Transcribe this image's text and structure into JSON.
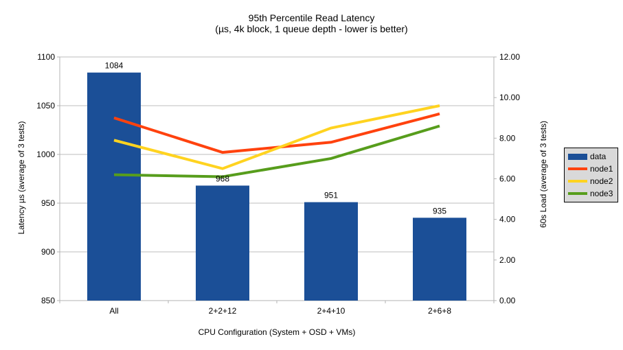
{
  "title": {
    "line1": "95th Percentile Read Latency",
    "line2": "(µs, 4k block, 1 queue depth - lower is better)"
  },
  "chart_data": {
    "type": "bar",
    "subtype": "bar-and-line-combo",
    "categories": [
      "All",
      "2+2+12",
      "2+4+10",
      "2+6+8"
    ],
    "bar_series": {
      "name": "data",
      "axis": "left",
      "values": [
        1084,
        968,
        951,
        935
      ],
      "data_labels": [
        "1084",
        "968",
        "951",
        "935"
      ],
      "color": "#1B4F97"
    },
    "line_series": [
      {
        "name": "node1",
        "axis": "right",
        "values": [
          9.0,
          7.3,
          7.8,
          9.2
        ],
        "color": "#FF420E"
      },
      {
        "name": "node2",
        "axis": "right",
        "values": [
          7.9,
          6.5,
          8.5,
          9.6
        ],
        "color": "#FFD320"
      },
      {
        "name": "node3",
        "axis": "right",
        "values": [
          6.2,
          6.1,
          7.0,
          8.6
        ],
        "color": "#579D1C"
      }
    ],
    "left_axis": {
      "title": "Latency µs (average of 3 tests)",
      "min": 850,
      "max": 1100,
      "step": 50,
      "tick_labels": [
        "850",
        "900",
        "950",
        "1000",
        "1050",
        "1100"
      ]
    },
    "right_axis": {
      "title": "60s Load (average of 3 tests)",
      "min": 0,
      "max": 12,
      "step": 2,
      "tick_labels": [
        "0.00",
        "2.00",
        "4.00",
        "6.00",
        "8.00",
        "10.00",
        "12.00"
      ]
    },
    "x_axis": {
      "title": "CPU Configuration (System + OSD + VMs)"
    },
    "legend": {
      "position": "right",
      "items": [
        {
          "label": "data",
          "type": "bar"
        },
        {
          "label": "node1",
          "type": "line"
        },
        {
          "label": "node2",
          "type": "line"
        },
        {
          "label": "node3",
          "type": "line"
        }
      ]
    },
    "grid": true,
    "colors": {
      "background": "#FFFFFF",
      "grid": "#BDBDBD",
      "axis": "#B3B3B3",
      "legend_background": "#D9D9D9",
      "legend_border": "#000000",
      "text": "#000000"
    }
  }
}
